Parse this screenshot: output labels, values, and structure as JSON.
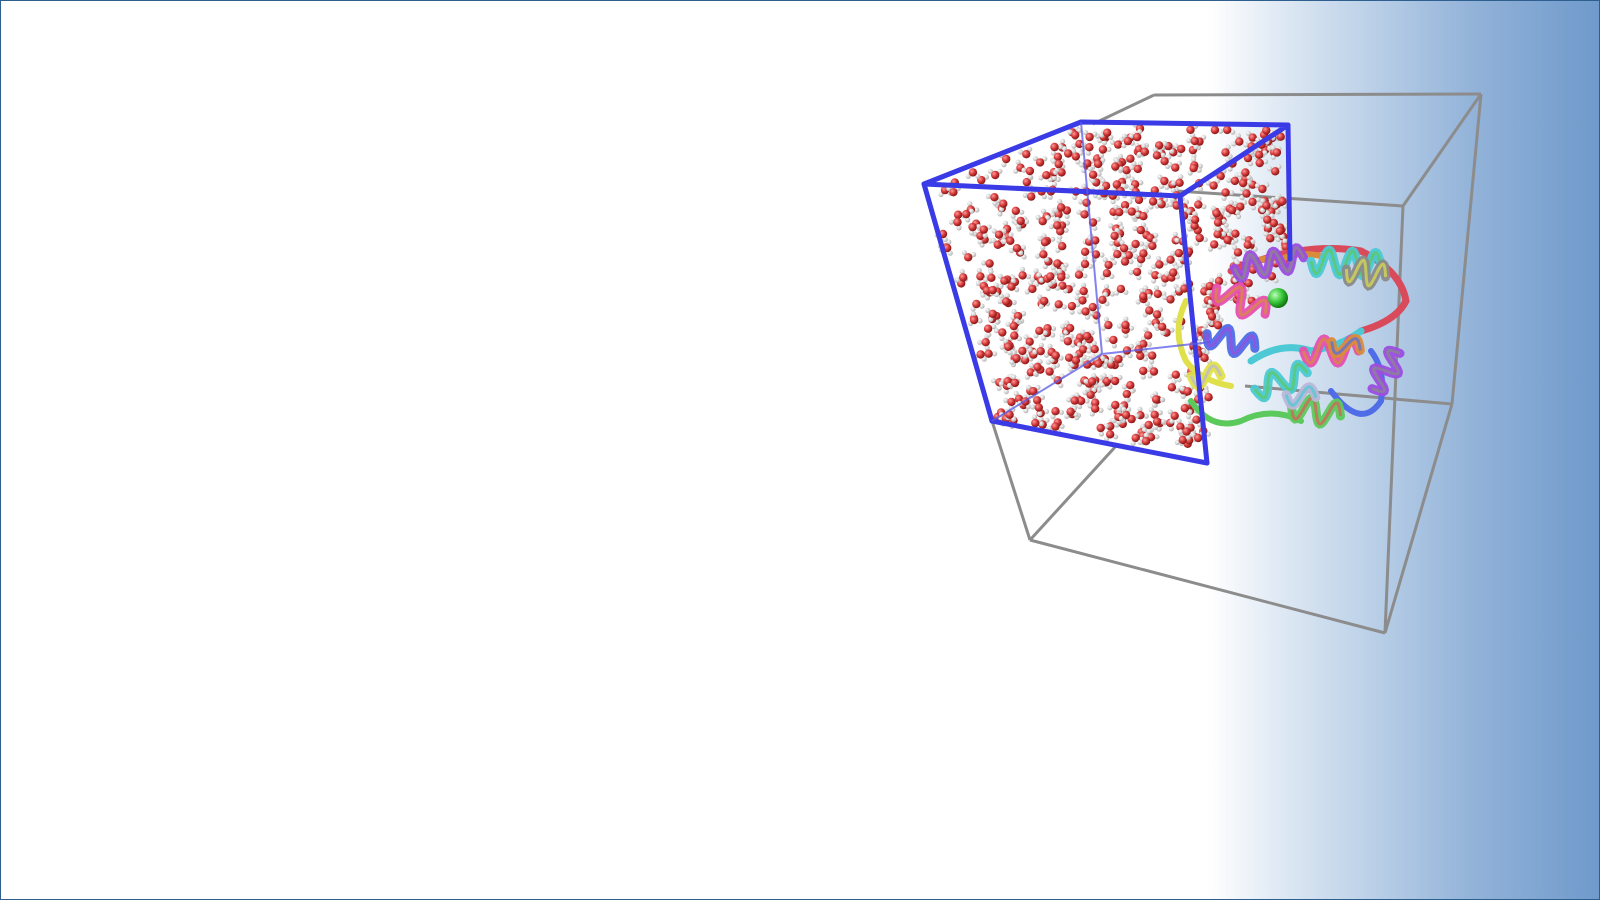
{
  "slide": {
    "background_gradient": [
      "#ffffff",
      "#6f9acb"
    ],
    "border_color": "#2f5f8f"
  },
  "scene": {
    "description_icons": [
      "periodic-box-outline",
      "water-box-outline",
      "water-molecules",
      "protein-ribbon",
      "ion-sphere"
    ],
    "colors": {
      "outer_box": "#8c8c8c",
      "inner_box": "#3a3ae6",
      "oxygen": "#d43a3a",
      "hydrogen": "#f2f2f2",
      "ion": "#35c235",
      "ribbon": [
        "#9b4de0",
        "#e64fb0",
        "#4cc9d4",
        "#8a8a8a",
        "#d98d3a",
        "#5cc95c",
        "#e0e04a",
        "#4f6de6",
        "#e05a5a",
        "#b8b8d8"
      ]
    }
  }
}
